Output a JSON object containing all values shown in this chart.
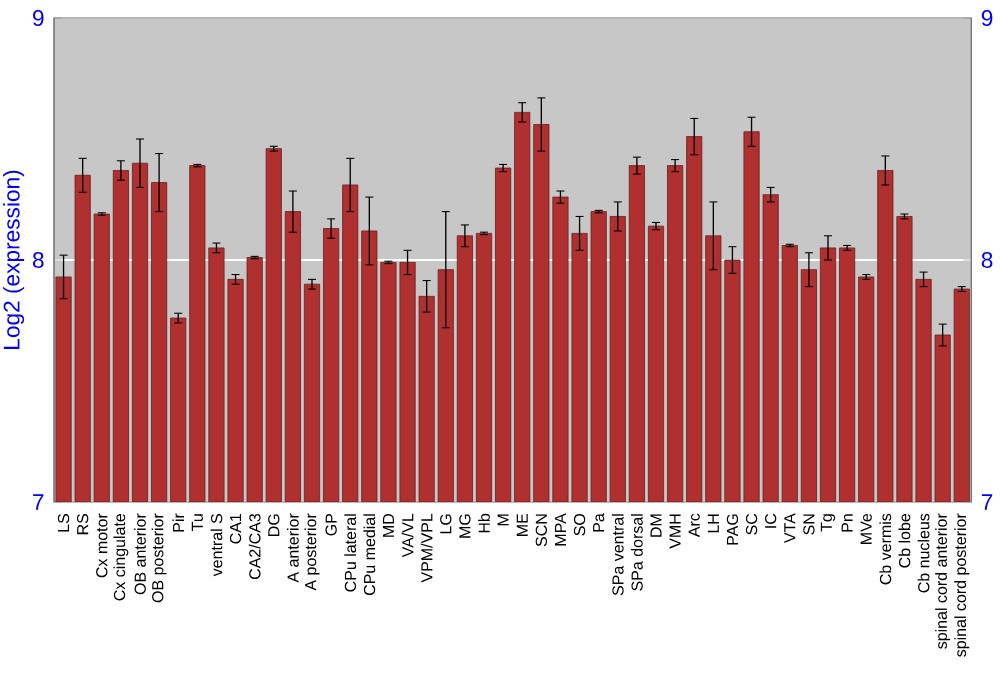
{
  "chart_data": {
    "type": "bar",
    "ylabel": "Log2 (expression)",
    "categories": [
      "LS",
      "RS",
      "Cx motor",
      "Cx cingulate",
      "OB anterior",
      "OB posterior",
      "Pir",
      "Tu",
      "ventral S",
      "CA1",
      "CA2/CA3",
      "DG",
      "A anterior",
      "A posterior",
      "GP",
      "CPu lateral",
      "CPu medial",
      "MD",
      "VA/VL",
      "VPM/VPL",
      "LG",
      "MG",
      "Hb",
      "M",
      "ME",
      "SCN",
      "MPA",
      "SO",
      "Pa",
      "SPa ventral",
      "SPa dorsal",
      "DM",
      "VMH",
      "Arc",
      "LH",
      "PAG",
      "SC",
      "IC",
      "VTA",
      "SN",
      "Tg",
      "Pn",
      "MVe",
      "Cb vermis",
      "Cb lobe",
      "Cb nucleus",
      "spinal cord anterior",
      "spinal cord posterior"
    ],
    "values": [
      7.93,
      8.35,
      8.19,
      8.37,
      8.4,
      8.32,
      7.76,
      8.39,
      8.05,
      7.92,
      8.01,
      8.46,
      8.2,
      7.9,
      8.13,
      8.31,
      8.12,
      7.99,
      7.99,
      7.85,
      7.96,
      8.1,
      8.11,
      8.38,
      8.61,
      8.56,
      8.26,
      8.11,
      8.2,
      8.18,
      8.39,
      8.14,
      8.39,
      8.51,
      8.1,
      8.0,
      8.53,
      8.27,
      8.06,
      7.96,
      8.05,
      8.05,
      7.93,
      8.37,
      8.18,
      7.92,
      7.69,
      7.88
    ],
    "errors": [
      0.09,
      0.07,
      0.005,
      0.04,
      0.1,
      0.12,
      0.02,
      0.005,
      0.02,
      0.02,
      0.005,
      0.01,
      0.085,
      0.02,
      0.04,
      0.11,
      0.14,
      0.005,
      0.05,
      0.065,
      0.24,
      0.045,
      0.005,
      0.015,
      0.04,
      0.11,
      0.025,
      0.07,
      0.005,
      0.06,
      0.035,
      0.015,
      0.025,
      0.075,
      0.14,
      0.055,
      0.06,
      0.03,
      0.005,
      0.07,
      0.05,
      0.01,
      0.01,
      0.06,
      0.01,
      0.03,
      0.045,
      0.01
    ],
    "color": "#b03030",
    "ylim": [
      7,
      9
    ],
    "yticks": [
      7,
      8,
      9
    ],
    "y2lim": [
      7,
      9
    ],
    "y2ticks": [
      7,
      8,
      9
    ],
    "grid": "y"
  }
}
